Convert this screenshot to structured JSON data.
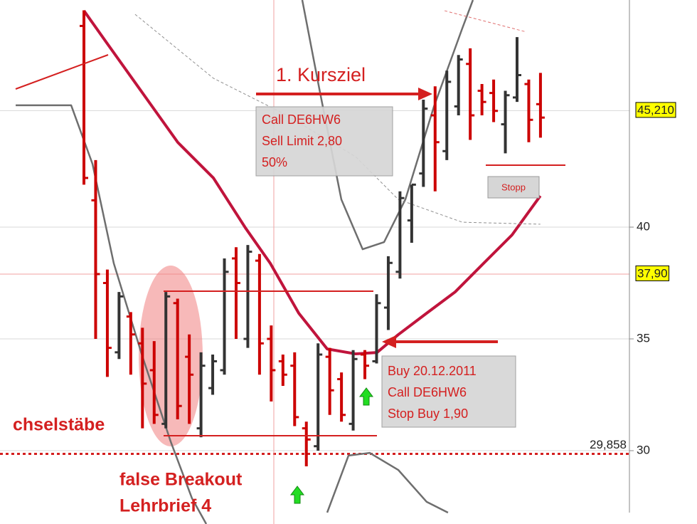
{
  "chart_data": {
    "type": "ohlc",
    "xlim": [
      -7.17,
      46.6
    ],
    "ylim": [
      26.72,
      50.16
    ],
    "yticks": [
      30,
      35,
      40
    ],
    "grid": true,
    "price_labels": [
      {
        "value": 45.21,
        "label": "45,210"
      },
      {
        "value": 37.9,
        "label": "37,90"
      },
      {
        "value": 29.858,
        "label": "29,858"
      }
    ],
    "ohlc": {
      "up_color": "#333333",
      "down_color": "#cc0000",
      "x": [
        0,
        1,
        2,
        3,
        4,
        5,
        6,
        7,
        8,
        9,
        10,
        11,
        12,
        13,
        14,
        15,
        16,
        17,
        18,
        19,
        20,
        21,
        22,
        23,
        24,
        25,
        26,
        27,
        28,
        29,
        30,
        31,
        32,
        33,
        34,
        35,
        36,
        37,
        38,
        39
      ],
      "open": [
        49,
        41.2,
        37.5,
        34.4,
        36,
        34.8,
        33.6,
        31.2,
        36.6,
        34.2,
        31,
        32.8,
        33.6,
        38.6,
        35,
        38.5,
        35,
        34,
        33.8,
        31,
        30.2,
        34.2,
        33.2,
        31.2,
        34.3,
        34,
        36.4,
        38,
        40.3,
        42.4,
        45,
        43.4,
        45.4,
        47.3,
        46.1,
        46,
        44.6,
        45.8,
        46.4,
        45.5
      ],
      "high": [
        49.7,
        43,
        38.1,
        37.1,
        36.2,
        35.5,
        34.9,
        37.1,
        36.8,
        35.2,
        34.4,
        34.3,
        38.6,
        39.1,
        39.2,
        38.8,
        35.6,
        34.3,
        34.4,
        31.3,
        34.8,
        34.6,
        33.5,
        34.5,
        34.5,
        37,
        38.7,
        41.6,
        41.9,
        45.7,
        46.3,
        47,
        47.7,
        48,
        46.4,
        46.6,
        46.1,
        48.5,
        46.6,
        46.9
      ],
      "low": [
        41.9,
        35,
        33.3,
        34.1,
        33.4,
        31,
        31.2,
        31,
        31.4,
        31.2,
        30.6,
        32.5,
        33.4,
        35,
        34.6,
        33.4,
        32.2,
        32.9,
        31.1,
        29.3,
        30,
        31.6,
        31.3,
        30.9,
        33.2,
        33.9,
        35.4,
        37.7,
        39.3,
        41.8,
        41.6,
        43,
        45,
        43.9,
        45,
        44.7,
        43.3,
        45.6,
        43.8,
        44
      ],
      "close": [
        42.2,
        37.9,
        34.6,
        36.9,
        35.2,
        33,
        31.6,
        36.9,
        32,
        33.4,
        33.8,
        34,
        38,
        37.5,
        38.9,
        34.8,
        33.6,
        33.4,
        31.5,
        30.5,
        34.3,
        32.7,
        31.6,
        34.1,
        33.8,
        36.6,
        38.4,
        41.3,
        41.9,
        45.3,
        43.8,
        46.5,
        47.5,
        45,
        45.6,
        45.2,
        45.9,
        46.8,
        44.8,
        44.9
      ]
    },
    "lines": [
      {
        "color": "#c0143c",
        "width": 4,
        "dash": "",
        "x": [
          0,
          1.94,
          4.98,
          8.02,
          11.06,
          13.79,
          15.92,
          18.35,
          20.78,
          23.21,
          25.03,
          26.85,
          29.28,
          31.71,
          34.14,
          36.57,
          38.99
        ],
        "values": [
          49.68,
          48.25,
          46.02,
          43.79,
          42.2,
          39.97,
          38.38,
          36.15,
          34.55,
          34.33,
          34.39,
          35.19,
          36.15,
          37.1,
          38.38,
          39.65,
          41.4
        ]
      },
      {
        "color": "#6e6e6e",
        "width": 2.5,
        "dash": "",
        "x": [
          -5.83,
          -1.09,
          0.73,
          2.55,
          4.98,
          7.41,
          9.23,
          10.45,
          null,
          20.78,
          22.6,
          24.42,
          26.85,
          29.28,
          31.1
        ],
        "values": [
          45.45,
          45.45,
          42.83,
          38.38,
          34.24,
          30.41,
          27.87,
          26.72,
          null,
          27.23,
          29.78,
          29.9,
          29.14,
          27.71,
          27.23
        ]
      },
      {
        "color": "#6e6e6e",
        "width": 2.5,
        "dash": "",
        "x": [
          18.65,
          20.17,
          21.99,
          23.81,
          25.64,
          27.46,
          29.89,
          32.32,
          33.23
        ],
        "values": [
          50.16,
          46.02,
          41.24,
          39.01,
          39.33,
          41.24,
          45.38,
          48.89,
          50.16
        ]
      },
      {
        "color": "#909090",
        "width": 1,
        "dash": "4 3",
        "x": [
          4.37,
          11.06,
          17.13,
          23.21,
          26.85,
          32.32,
          38.99
        ],
        "values": [
          49.52,
          46.66,
          45.06,
          43.15,
          41.24,
          40.22,
          40.13
        ]
      },
      {
        "color": "#e07070",
        "width": 1,
        "dash": "4 3",
        "x": [
          30.81,
          37.8
        ],
        "values": [
          49.68,
          48.73
        ]
      }
    ],
    "annotations": {
      "target": "1. Kursziel",
      "sell_order": [
        "Call DE6HW6",
        "Sell Limit 2,80",
        "50%"
      ],
      "stop": "Stopp",
      "buy_order": [
        "Buy 20.12.2011",
        "Call DE6HW6",
        "Stop Buy 1,90"
      ],
      "pattern": "chselstäbe",
      "breakout": [
        "false Breakout",
        "Lehrbrief 4"
      ]
    }
  }
}
